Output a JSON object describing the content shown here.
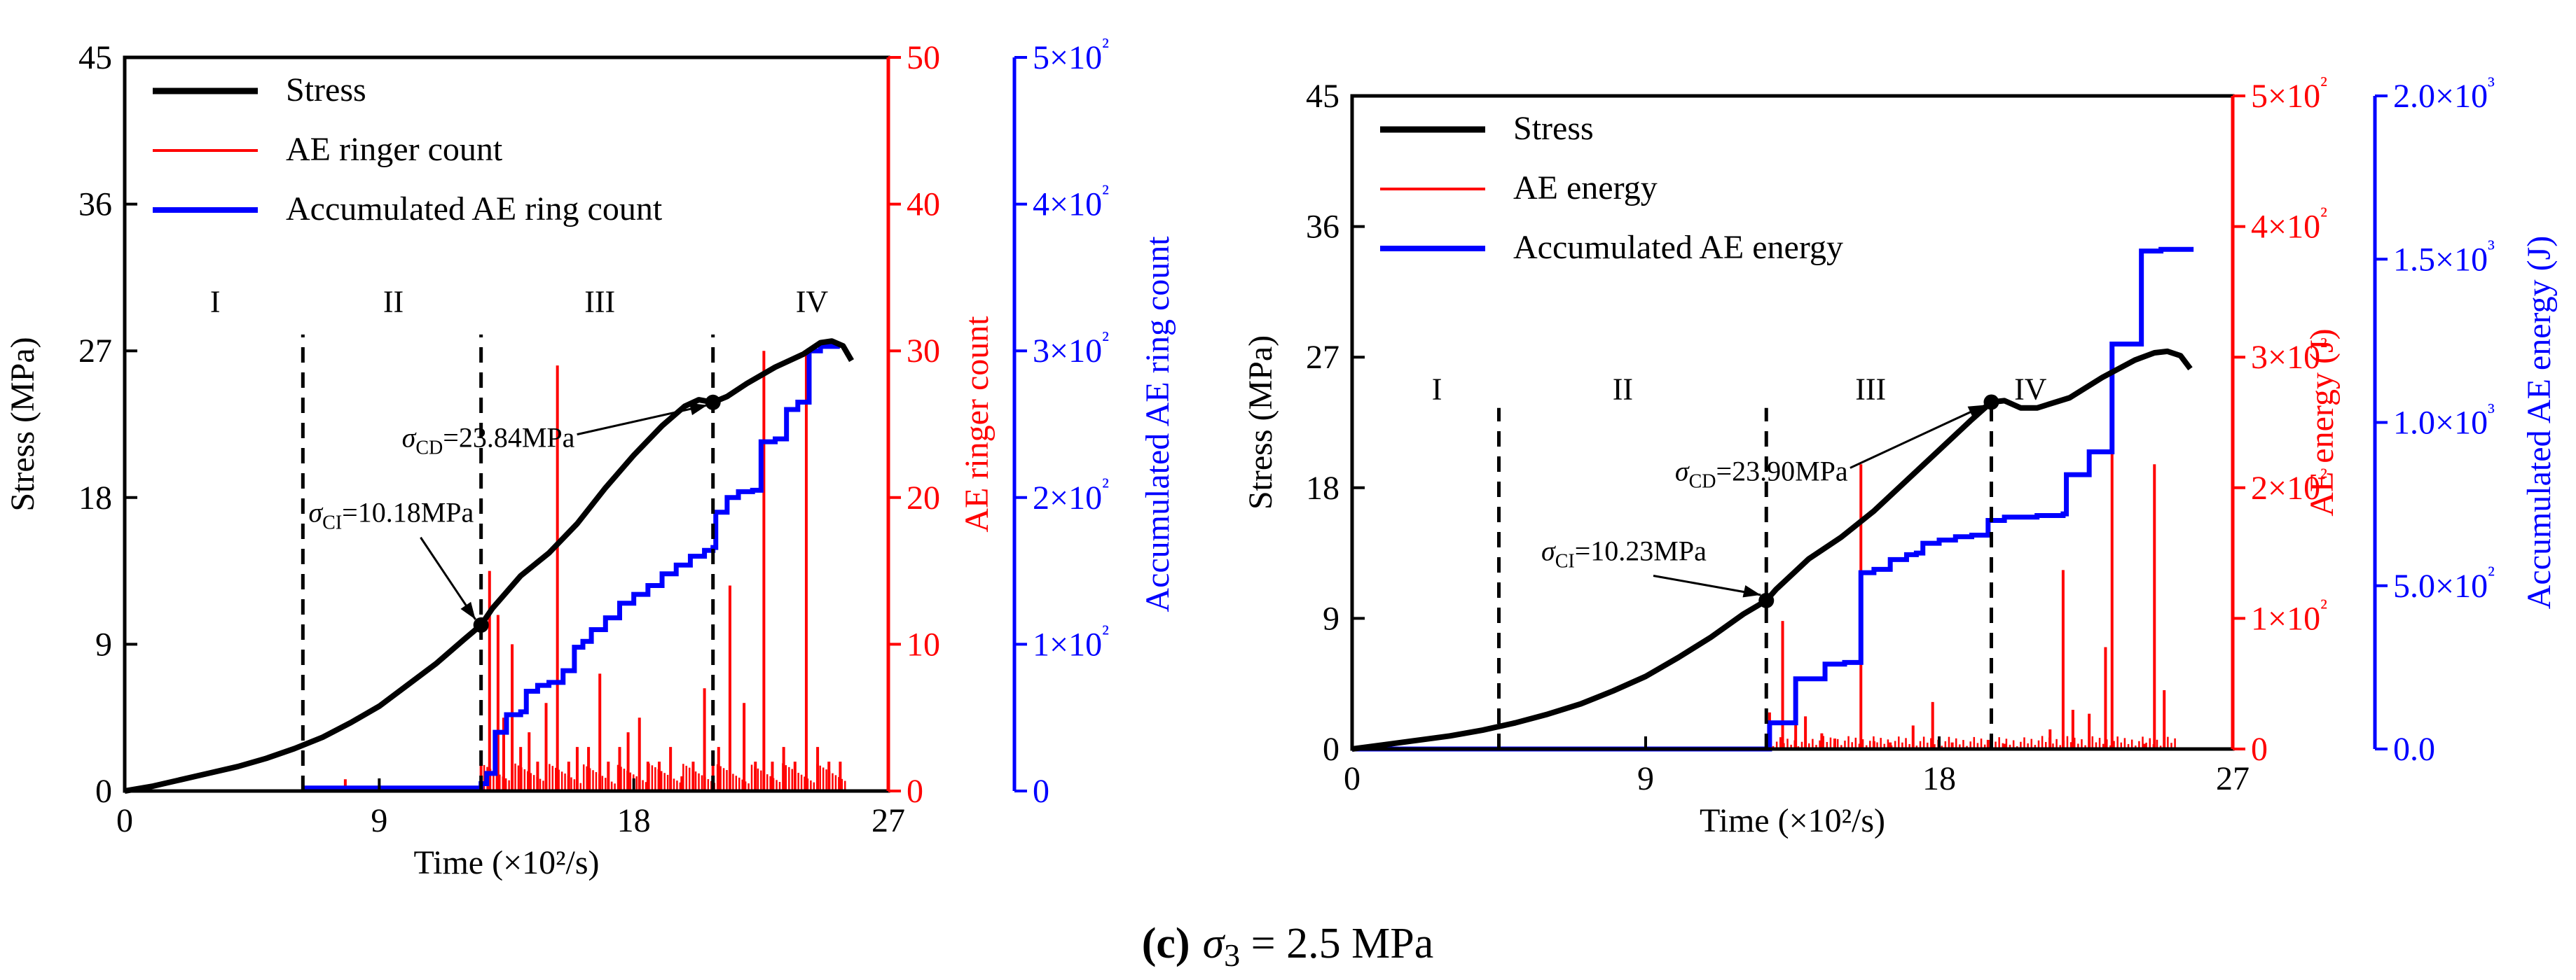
{
  "figure": {
    "caption_letter": "(c)",
    "caption_sigma": "σ",
    "caption_sub": "3",
    "caption_rest": " = 2.5 MPa"
  },
  "chart_data": [
    {
      "type": "line",
      "panel": "left",
      "xlabel": "Time (×10²/s)",
      "ylabel_left": "Stress (MPa)",
      "ylabel_right1": "AE ringer count",
      "ylabel_right2": "Accumulated AE ring count",
      "xlim": [
        0,
        27
      ],
      "xticks": [
        "0",
        "9",
        "18",
        "27"
      ],
      "ylim_stress": [
        0,
        45
      ],
      "yticks_stress": [
        "0",
        "9",
        "18",
        "27",
        "36",
        "45"
      ],
      "ylim_ae": [
        0,
        50
      ],
      "yticks_ae": [
        "0",
        "10",
        "20",
        "30",
        "40",
        "50"
      ],
      "ylim_acc": [
        0,
        500
      ],
      "yticks_acc": [
        "0",
        "1×10²",
        "2×10²",
        "3×10²",
        "4×10²",
        "5×10²"
      ],
      "legend": [
        "Stress",
        "AE ringer count",
        "Accumulated AE ring count"
      ],
      "legend_position": "top-left",
      "colors": {
        "stress": "#000000",
        "ae": "#ff0000",
        "acc": "#0000ff"
      },
      "stages": [
        "I",
        "II",
        "III",
        "IV"
      ],
      "stage_x": [
        3.2,
        9.5,
        16.8,
        24.3
      ],
      "stage_boundaries": [
        6.3,
        12.6,
        20.8
      ],
      "annotations": [
        {
          "sym": "σ",
          "sub": "CI",
          "text": "=10.18MPa",
          "x": 12.6,
          "y": 10.18,
          "tx": 6.5,
          "ty": 16.5
        },
        {
          "sym": "σ",
          "sub": "CD",
          "text": "=23.84MPa",
          "x": 20.8,
          "y": 23.84,
          "tx": 9.8,
          "ty": 21.1
        }
      ],
      "stress": {
        "x": [
          0,
          1,
          2,
          3,
          4,
          5,
          6,
          7,
          8,
          9,
          10,
          11,
          12,
          12.6,
          13,
          14,
          15,
          16,
          17,
          18,
          19,
          19.8,
          20.3,
          20.8,
          21.3,
          22,
          23,
          24,
          24.6,
          25,
          25.4,
          25.7
        ],
        "y": [
          0,
          0.3,
          0.7,
          1.1,
          1.5,
          2.0,
          2.6,
          3.3,
          4.2,
          5.2,
          6.5,
          7.8,
          9.3,
          10.18,
          11.2,
          13.2,
          14.6,
          16.4,
          18.6,
          20.6,
          22.4,
          23.6,
          24.0,
          23.84,
          24.2,
          25.0,
          26.0,
          26.8,
          27.5,
          27.6,
          27.3,
          26.4
        ]
      },
      "acc": {
        "x": [
          6.3,
          12.6,
          12.8,
          13.1,
          13.5,
          14.0,
          14.2,
          14.6,
          15.0,
          15.5,
          15.9,
          16.2,
          16.5,
          17.0,
          17.5,
          18.0,
          18.5,
          19.0,
          19.5,
          20.0,
          20.5,
          20.8,
          20.9,
          21.3,
          21.7,
          22.2,
          22.5,
          23.0,
          23.4,
          23.8,
          24.2,
          24.6,
          25.2
        ],
        "y": [
          2,
          5,
          12,
          40,
          52,
          54,
          68,
          72,
          74,
          82,
          98,
          102,
          110,
          118,
          128,
          134,
          140,
          148,
          154,
          160,
          164,
          166,
          190,
          200,
          204,
          205,
          238,
          240,
          260,
          265,
          300,
          303,
          305
        ]
      },
      "ae_spikes": {
        "x": [
          7.8,
          12.6,
          12.9,
          13.2,
          13.4,
          13.7,
          14.0,
          14.3,
          14.6,
          14.9,
          15.3,
          15.7,
          16.0,
          16.4,
          16.8,
          17.1,
          17.5,
          17.8,
          18.2,
          18.5,
          18.9,
          19.3,
          19.7,
          20.1,
          20.5,
          20.8,
          21.0,
          21.4,
          21.9,
          22.3,
          22.6,
          22.9,
          23.3,
          23.7,
          24.1,
          24.5,
          24.9,
          25.3
        ],
        "y": [
          0.8,
          2,
          15,
          12,
          5,
          10,
          3,
          4,
          2,
          6,
          29,
          2,
          3,
          3,
          8,
          2,
          3,
          4,
          5,
          2,
          2,
          3,
          1,
          2,
          7,
          2,
          3,
          14,
          6,
          2,
          30,
          2,
          3,
          2,
          30,
          3,
          2,
          2
        ]
      }
    },
    {
      "type": "line",
      "panel": "right",
      "xlabel": "Time (×10²/s)",
      "ylabel_left": "Stress (MPa)",
      "ylabel_right1": "AE energy (J)",
      "ylabel_right2": "Accumulated AE energy (J)",
      "xlim": [
        0,
        27
      ],
      "xticks": [
        "0",
        "9",
        "18",
        "27"
      ],
      "ylim_stress": [
        0,
        45
      ],
      "yticks_stress": [
        "0",
        "9",
        "18",
        "27",
        "36",
        "45"
      ],
      "ylim_ae": [
        0,
        500
      ],
      "yticks_ae": [
        "0",
        "1×10²",
        "2×10²",
        "3×10²",
        "4×10²",
        "5×10²"
      ],
      "ylim_acc": [
        0,
        2000
      ],
      "yticks_acc": [
        "0.0",
        "5.0×10²",
        "1.0×10³",
        "1.5×10³",
        "2.0×10³"
      ],
      "legend": [
        "Stress",
        "AE energy",
        "Accumulated AE energy"
      ],
      "legend_position": "top-left",
      "colors": {
        "stress": "#000000",
        "ae": "#ff0000",
        "acc": "#0000ff"
      },
      "stages": [
        "I",
        "II",
        "III",
        "IV"
      ],
      "stage_x": [
        2.6,
        8.3,
        15.9,
        20.8
      ],
      "stage_boundaries": [
        4.5,
        12.7,
        19.6
      ],
      "annotations": [
        {
          "sym": "σ",
          "sub": "CI",
          "text": "=10.23MPa",
          "x": 12.7,
          "y": 10.23,
          "tx": 5.8,
          "ty": 13.0
        },
        {
          "sym": "σ",
          "sub": "CD",
          "text": "=23.90MPa",
          "x": 19.6,
          "y": 23.9,
          "tx": 9.9,
          "ty": 18.5
        }
      ],
      "stress": {
        "x": [
          0,
          1,
          2,
          3,
          4,
          5,
          6,
          7,
          8,
          9,
          10,
          11,
          12,
          12.7,
          13,
          14,
          15,
          16,
          17,
          18,
          19,
          19.6,
          20.0,
          20.5,
          21.0,
          22.0,
          23.0,
          24.0,
          24.6,
          25.0,
          25.4,
          25.7
        ],
        "y": [
          0,
          0.3,
          0.6,
          0.9,
          1.3,
          1.8,
          2.4,
          3.1,
          4.0,
          5.0,
          6.3,
          7.7,
          9.3,
          10.23,
          11.0,
          13.1,
          14.6,
          16.4,
          18.5,
          20.6,
          22.7,
          23.9,
          24.0,
          23.5,
          23.5,
          24.2,
          25.6,
          26.8,
          27.3,
          27.4,
          27.1,
          26.2
        ]
      },
      "acc": {
        "x": [
          0,
          12.7,
          12.8,
          13.5,
          13.6,
          14.4,
          14.5,
          15.0,
          15.1,
          15.5,
          15.6,
          16.0,
          16.5,
          17.0,
          17.3,
          17.5,
          18.0,
          18.5,
          19.0,
          19.5,
          20.0,
          21.0,
          21.8,
          21.9,
          22.5,
          22.6,
          23.2,
          23.3,
          23.8,
          24.0,
          24.2,
          24.8,
          25.8
        ],
        "y": [
          0,
          0,
          80,
          80,
          215,
          215,
          260,
          260,
          265,
          265,
          540,
          550,
          580,
          595,
          600,
          630,
          640,
          650,
          655,
          700,
          710,
          715,
          720,
          840,
          840,
          910,
          910,
          1240,
          1240,
          1240,
          1525,
          1530,
          1530
        ]
      },
      "ae_spikes": {
        "x": [
          12.8,
          13.2,
          13.6,
          13.9,
          14.4,
          14.8,
          15.6,
          16.0,
          16.5,
          17.2,
          17.8,
          18.4,
          19.5,
          19.6,
          20.0,
          21.4,
          21.8,
          22.1,
          22.6,
          23.1,
          23.3,
          24.3,
          24.6,
          24.9
        ],
        "y": [
          28,
          98,
          43,
          25,
          12,
          8,
          218,
          6,
          5,
          18,
          36,
          5,
          7,
          8,
          4,
          15,
          137,
          30,
          27,
          78,
          247,
          4,
          218,
          45
        ]
      }
    }
  ]
}
